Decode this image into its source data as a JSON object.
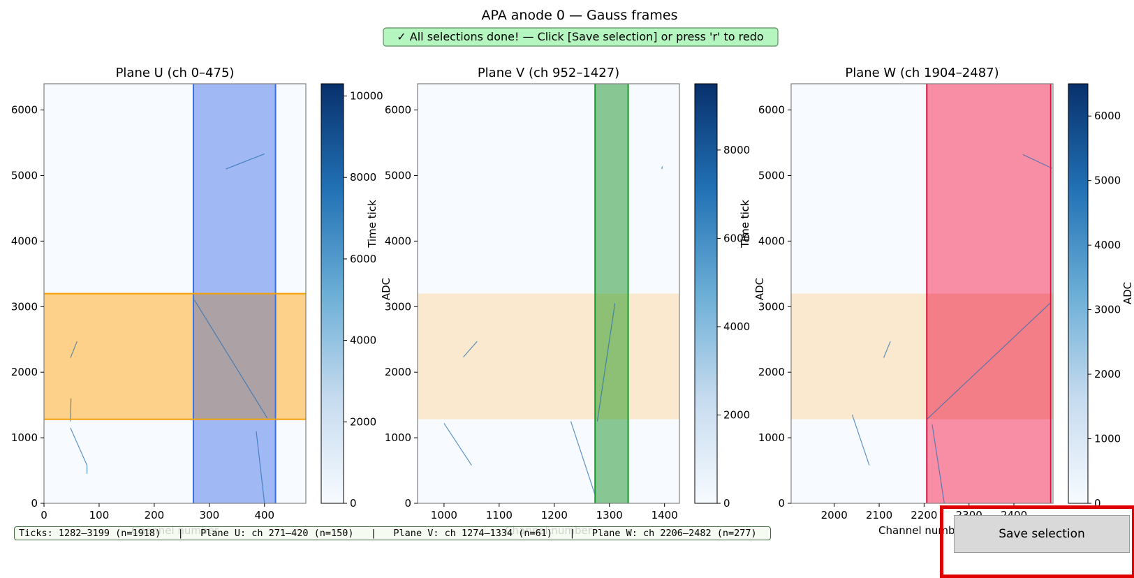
{
  "figure": {
    "title": "APA anode 0 — Gauss frames",
    "banner": "✓ All selections done! — Click [Save selection] or press 'r' to redo"
  },
  "panels": [
    {
      "id": "u",
      "title": "Plane U  (ch 0–475)",
      "xlim": [
        0,
        475
      ],
      "ylim": [
        0,
        6400
      ],
      "xticks": [
        0,
        100,
        200,
        300,
        400
      ],
      "yticks": [
        0,
        1000,
        2000,
        3000,
        4000,
        5000,
        6000
      ],
      "ylabel": "Time tick",
      "xlabel": "Channel number",
      "colorbar": {
        "label": "ADC",
        "max": 10300,
        "ticks": [
          0,
          2000,
          4000,
          6000,
          8000,
          10000
        ]
      },
      "channel_band": {
        "from": 271,
        "to": 420,
        "fill": "#a0b8f4",
        "edge": "#3b6fe6",
        "opacity": 1.0
      },
      "tick_band": {
        "from": 1282,
        "to": 3199,
        "fill": "#fdd189",
        "edge": "#f5a000",
        "opacity": 1.0
      },
      "overlap_color": "#aca2a6",
      "tracks": [
        [
          [
            330,
            5100
          ],
          [
            400,
            5330
          ]
        ],
        [
          [
            48,
            2220
          ],
          [
            60,
            2470
          ]
        ],
        [
          [
            48,
            1250
          ],
          [
            49,
            1600
          ]
        ],
        [
          [
            48,
            1150
          ],
          [
            78,
            580
          ]
        ],
        [
          [
            78,
            580
          ],
          [
            78,
            450
          ]
        ],
        [
          [
            273,
            3100
          ],
          [
            405,
            1300
          ]
        ],
        [
          [
            385,
            1100
          ],
          [
            400,
            0
          ]
        ]
      ]
    },
    {
      "id": "v",
      "title": "Plane V  (ch 952–1427)",
      "xlim": [
        952,
        1427
      ],
      "ylim": [
        0,
        6400
      ],
      "xticks": [
        1000,
        1100,
        1200,
        1300,
        1400
      ],
      "yticks": [
        0,
        1000,
        2000,
        3000,
        4000,
        5000,
        6000
      ],
      "ylabel": "Time tick",
      "xlabel": "Channel number",
      "colorbar": {
        "label": "ADC",
        "max": 9500,
        "ticks": [
          0,
          2000,
          4000,
          6000,
          8000
        ]
      },
      "channel_band": {
        "from": 1274,
        "to": 1334,
        "fill": "#88c794",
        "edge": "#169b2a",
        "opacity": 1.0
      },
      "tick_band": {
        "from": 1282,
        "to": 3199,
        "fill": "#fae9cf",
        "edge": "none",
        "opacity": 1.0
      },
      "overlap_color": "#8dbf74",
      "tracks": [
        [
          [
            1000,
            1220
          ],
          [
            1050,
            580
          ]
        ],
        [
          [
            1035,
            2230
          ],
          [
            1060,
            2470
          ]
        ],
        [
          [
            1395,
            5100
          ],
          [
            1396,
            5140
          ]
        ],
        [
          [
            1230,
            1250
          ],
          [
            1275,
            100
          ]
        ],
        [
          [
            1278,
            1250
          ],
          [
            1310,
            3050
          ]
        ]
      ]
    },
    {
      "id": "w",
      "title": "Plane W  (ch 1904–2487)",
      "xlim": [
        1904,
        2487
      ],
      "ylim": [
        0,
        6400
      ],
      "xticks": [
        2000,
        2100,
        2200,
        2300,
        2400
      ],
      "yticks": [
        0,
        1000,
        2000,
        3000,
        4000,
        5000,
        6000
      ],
      "ylabel": "Time tick",
      "xlabel": "Channel number",
      "colorbar": {
        "label": "ADC",
        "max": 6500,
        "ticks": [
          0,
          1000,
          2000,
          3000,
          4000,
          5000,
          6000
        ]
      },
      "channel_band": {
        "from": 2206,
        "to": 2482,
        "fill": "#f88ea6",
        "edge": "#e0103e",
        "opacity": 1.0
      },
      "tick_band": {
        "from": 1282,
        "to": 3199,
        "fill": "#fae9cf",
        "edge": "none",
        "opacity": 1.0
      },
      "overlap_color": "#f47e88",
      "tracks": [
        [
          [
            2110,
            2220
          ],
          [
            2125,
            2470
          ]
        ],
        [
          [
            2040,
            1350
          ],
          [
            2078,
            580
          ]
        ],
        [
          [
            2206,
            1280
          ],
          [
            2480,
            3050
          ]
        ],
        [
          [
            2420,
            5320
          ],
          [
            2485,
            5110
          ]
        ],
        [
          [
            2218,
            1200
          ],
          [
            2245,
            0
          ]
        ]
      ]
    }
  ],
  "status_bar": {
    "text": "Ticks: 1282–3199 (n=1918)   |   Plane U: ch 271–420 (n=150)   |   Plane V: ch 1274–1334 (n=61)   |   Plane W: ch 2206–2482 (n=277)"
  },
  "save_button": {
    "label": "Save selection"
  },
  "colors": {
    "axes_bg": "#f7fbff",
    "cmap": [
      "#f7fbff",
      "#c6dbef",
      "#6baed6",
      "#2171b5",
      "#08306b"
    ]
  }
}
